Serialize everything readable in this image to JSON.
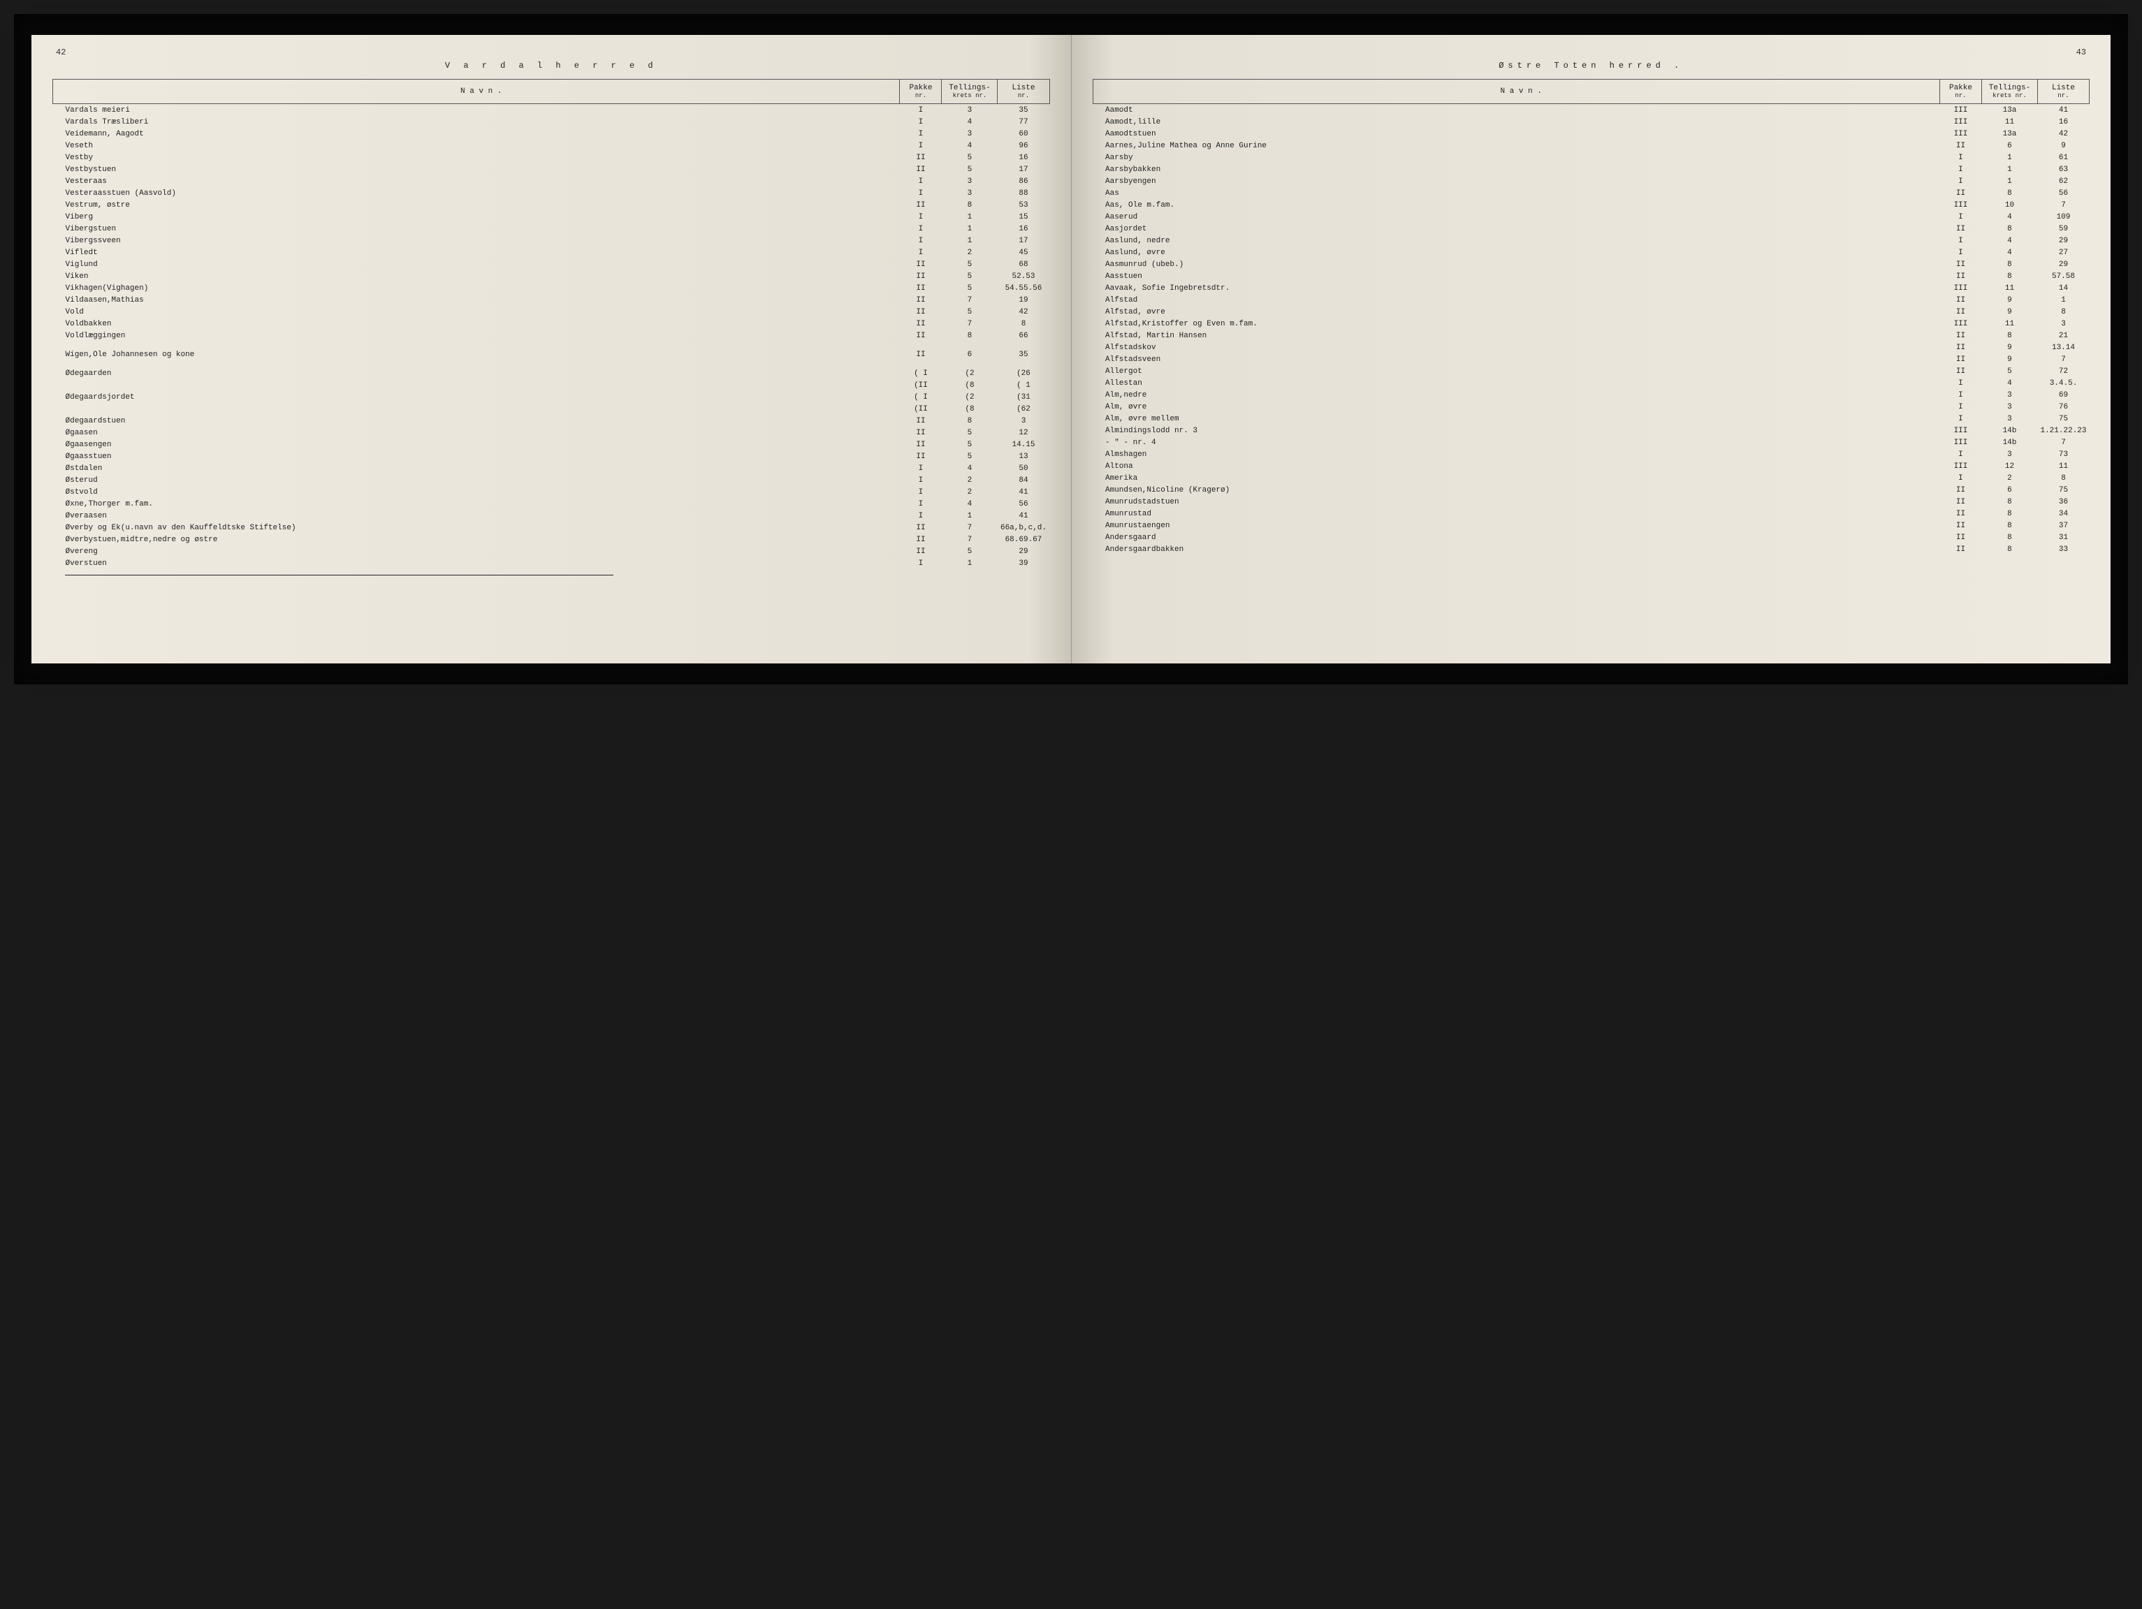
{
  "left": {
    "page_no": "42",
    "title": "V a r d a l   h e r r e d",
    "headers": {
      "name": "N a v n .",
      "pakke": "Pakke",
      "pakke_sub": "nr.",
      "krets": "Tellings-",
      "krets_sub": "krets nr.",
      "liste": "Liste",
      "liste_sub": "nr."
    },
    "rows": [
      {
        "name": "Vardals meieri",
        "pakke": "I",
        "krets": "3",
        "liste": "35"
      },
      {
        "name": "Vardals Træsliberi",
        "pakke": "I",
        "krets": "4",
        "liste": "77"
      },
      {
        "name": "Veidemann, Aagodt",
        "pakke": "I",
        "krets": "3",
        "liste": "60"
      },
      {
        "name": "Veseth",
        "pakke": "I",
        "krets": "4",
        "liste": "96"
      },
      {
        "name": "Vestby",
        "pakke": "II",
        "krets": "5",
        "liste": "16"
      },
      {
        "name": "Vestbystuen",
        "pakke": "II",
        "krets": "5",
        "liste": "17"
      },
      {
        "name": "Vesteraas",
        "pakke": "I",
        "krets": "3",
        "liste": "86"
      },
      {
        "name": "Vesteraasstuen (Aasvold)",
        "pakke": "I",
        "krets": "3",
        "liste": "88"
      },
      {
        "name": "Vestrum, østre",
        "pakke": "II",
        "krets": "8",
        "liste": "53"
      },
      {
        "name": "Viberg",
        "pakke": "I",
        "krets": "1",
        "liste": "15"
      },
      {
        "name": "Vibergstuen",
        "pakke": "I",
        "krets": "1",
        "liste": "16"
      },
      {
        "name": "Vibergssveen",
        "pakke": "I",
        "krets": "1",
        "liste": "17"
      },
      {
        "name": "Vifledt",
        "pakke": "I",
        "krets": "2",
        "liste": "45"
      },
      {
        "name": "Viglund",
        "pakke": "II",
        "krets": "5",
        "liste": "68"
      },
      {
        "name": "Viken",
        "pakke": "II",
        "krets": "5",
        "liste": "52.53"
      },
      {
        "name": "Vikhagen(Vighagen)",
        "pakke": "II",
        "krets": "5",
        "liste": "54.55.56"
      },
      {
        "name": "Vildaasen,Mathias",
        "pakke": "II",
        "krets": "7",
        "liste": "19"
      },
      {
        "name": "Vold",
        "pakke": "II",
        "krets": "5",
        "liste": "42"
      },
      {
        "name": "Voldbakken",
        "pakke": "II",
        "krets": "7",
        "liste": "8"
      },
      {
        "name": "Voldlæggingen",
        "pakke": "II",
        "krets": "8",
        "liste": "66"
      },
      {
        "spacer": true
      },
      {
        "name": "Wigen,Ole Johannesen og kone",
        "pakke": "II",
        "krets": "6",
        "liste": "35"
      },
      {
        "spacer": true
      },
      {
        "name": "Ødegaarden",
        "pakke": "( I",
        "krets": "(2",
        "liste": "(26"
      },
      {
        "name": "",
        "pakke": "(II",
        "krets": "(8",
        "liste": "( 1"
      },
      {
        "name": "Ødegaardsjordet",
        "pakke": "( I",
        "krets": "(2",
        "liste": "(31"
      },
      {
        "name": "",
        "pakke": "(II",
        "krets": "(8",
        "liste": "(62"
      },
      {
        "name": "Ødegaardstuen",
        "pakke": "II",
        "krets": "8",
        "liste": "3"
      },
      {
        "name": "Øgaasen",
        "pakke": "II",
        "krets": "5",
        "liste": "12"
      },
      {
        "name": "Øgaasengen",
        "pakke": "II",
        "krets": "5",
        "liste": "14.15"
      },
      {
        "name": "Øgaasstuen",
        "pakke": "II",
        "krets": "5",
        "liste": "13"
      },
      {
        "name": "Østdalen",
        "pakke": "I",
        "krets": "4",
        "liste": "50"
      },
      {
        "name": "Østerud",
        "pakke": "I",
        "krets": "2",
        "liste": "84"
      },
      {
        "name": "Østvold",
        "pakke": "I",
        "krets": "2",
        "liste": "41"
      },
      {
        "name": "Øxne,Thorger m.fam.",
        "pakke": "I",
        "krets": "4",
        "liste": "56"
      },
      {
        "name": "Øveraasen",
        "pakke": "I",
        "krets": "1",
        "liste": "41"
      },
      {
        "name": "Øverby og Ek(u.navn av den Kauffeldtske Stiftelse)",
        "pakke": "II",
        "krets": "7",
        "liste": "66a,b,c,d."
      },
      {
        "name": "Øverbystuen,midtre,nedre og østre",
        "pakke": "II",
        "krets": "7",
        "liste": "68.69.67"
      },
      {
        "name": "Øvereng",
        "pakke": "II",
        "krets": "5",
        "liste": "29"
      },
      {
        "name": "Øverstuen",
        "pakke": "I",
        "krets": "1",
        "liste": "39"
      }
    ]
  },
  "right": {
    "page_no": "43",
    "title": "Østre  Toten  herred .",
    "headers": {
      "name": "N a v n .",
      "pakke": "Pakke",
      "pakke_sub": "nr.",
      "krets": "Tellings-",
      "krets_sub": "krets nr.",
      "liste": "Liste",
      "liste_sub": "nr."
    },
    "rows": [
      {
        "name": "Aamodt",
        "pakke": "III",
        "krets": "13a",
        "liste": "41"
      },
      {
        "name": "Aamodt,lille",
        "pakke": "III",
        "krets": "11",
        "liste": "16"
      },
      {
        "name": "Aamodtstuen",
        "pakke": "III",
        "krets": "13a",
        "liste": "42"
      },
      {
        "name": "Aarnes,Juline Mathea og Anne Gurine",
        "pakke": "II",
        "krets": "6",
        "liste": "9"
      },
      {
        "name": "Aarsby",
        "pakke": "I",
        "krets": "1",
        "liste": "61"
      },
      {
        "name": "Aarsbybakken",
        "pakke": "I",
        "krets": "1",
        "liste": "63"
      },
      {
        "name": "Aarsbyengen",
        "pakke": "I",
        "krets": "1",
        "liste": "62"
      },
      {
        "name": "Aas",
        "pakke": "II",
        "krets": "8",
        "liste": "56"
      },
      {
        "name": "Aas, Ole m.fam.",
        "pakke": "III",
        "krets": "10",
        "liste": "7"
      },
      {
        "name": "Aaserud",
        "pakke": "I",
        "krets": "4",
        "liste": "109"
      },
      {
        "name": "Aasjordet",
        "pakke": "II",
        "krets": "8",
        "liste": "59"
      },
      {
        "name": "Aaslund, nedre",
        "pakke": "I",
        "krets": "4",
        "liste": "29"
      },
      {
        "name": "Aaslund, øvre",
        "pakke": "I",
        "krets": "4",
        "liste": "27"
      },
      {
        "name": "Aasmunrud (ubeb.)",
        "pakke": "II",
        "krets": "8",
        "liste": "29"
      },
      {
        "name": "Aasstuen",
        "pakke": "II",
        "krets": "8",
        "liste": "57.58"
      },
      {
        "name": "Aavaak, Sofie Ingebretsdtr.",
        "pakke": "III",
        "krets": "11",
        "liste": "14"
      },
      {
        "name": "Alfstad",
        "pakke": "II",
        "krets": "9",
        "liste": "1"
      },
      {
        "name": "Alfstad, øvre",
        "pakke": "II",
        "krets": "9",
        "liste": "8"
      },
      {
        "name": "Alfstad,Kristoffer og Even m.fam.",
        "pakke": "III",
        "krets": "11",
        "liste": "3"
      },
      {
        "name": "Alfstad, Martin Hansen",
        "pakke": "II",
        "krets": "8",
        "liste": "21"
      },
      {
        "name": "Alfstadskov",
        "pakke": "II",
        "krets": "9",
        "liste": "13.14"
      },
      {
        "name": "Alfstadsveen",
        "pakke": "II",
        "krets": "9",
        "liste": "7"
      },
      {
        "name": "Allergot",
        "pakke": "II",
        "krets": "5",
        "liste": "72"
      },
      {
        "name": "Allestan",
        "pakke": "I",
        "krets": "4",
        "liste": "3.4.5."
      },
      {
        "name": "Alm,nedre",
        "pakke": "I",
        "krets": "3",
        "liste": "69"
      },
      {
        "name": "Alm, øvre",
        "pakke": "I",
        "krets": "3",
        "liste": "76"
      },
      {
        "name": "Alm, øvre mellem",
        "pakke": "I",
        "krets": "3",
        "liste": "75"
      },
      {
        "name": "Almindingslodd nr. 3",
        "pakke": "III",
        "krets": "14b",
        "liste": "1.21.22.23"
      },
      {
        "name": "    - \" -   nr. 4",
        "pakke": "III",
        "krets": "14b",
        "liste": "7"
      },
      {
        "name": "Almshagen",
        "pakke": "I",
        "krets": "3",
        "liste": "73"
      },
      {
        "name": "Altona",
        "pakke": "III",
        "krets": "12",
        "liste": "11"
      },
      {
        "name": "Amerika",
        "pakke": "I",
        "krets": "2",
        "liste": "8"
      },
      {
        "name": "Amundsen,Nicoline (Kragerø)",
        "pakke": "II",
        "krets": "6",
        "liste": "75"
      },
      {
        "name": "Amunrudstadstuen",
        "pakke": "II",
        "krets": "8",
        "liste": "36"
      },
      {
        "name": "Amunrustad",
        "pakke": "II",
        "krets": "8",
        "liste": "34"
      },
      {
        "name": "Amunrustaengen",
        "pakke": "II",
        "krets": "8",
        "liste": "37"
      },
      {
        "name": "Andersgaard",
        "pakke": "II",
        "krets": "8",
        "liste": "31"
      },
      {
        "name": "Andersgaardbakken",
        "pakke": "II",
        "krets": "8",
        "liste": "33"
      }
    ]
  }
}
